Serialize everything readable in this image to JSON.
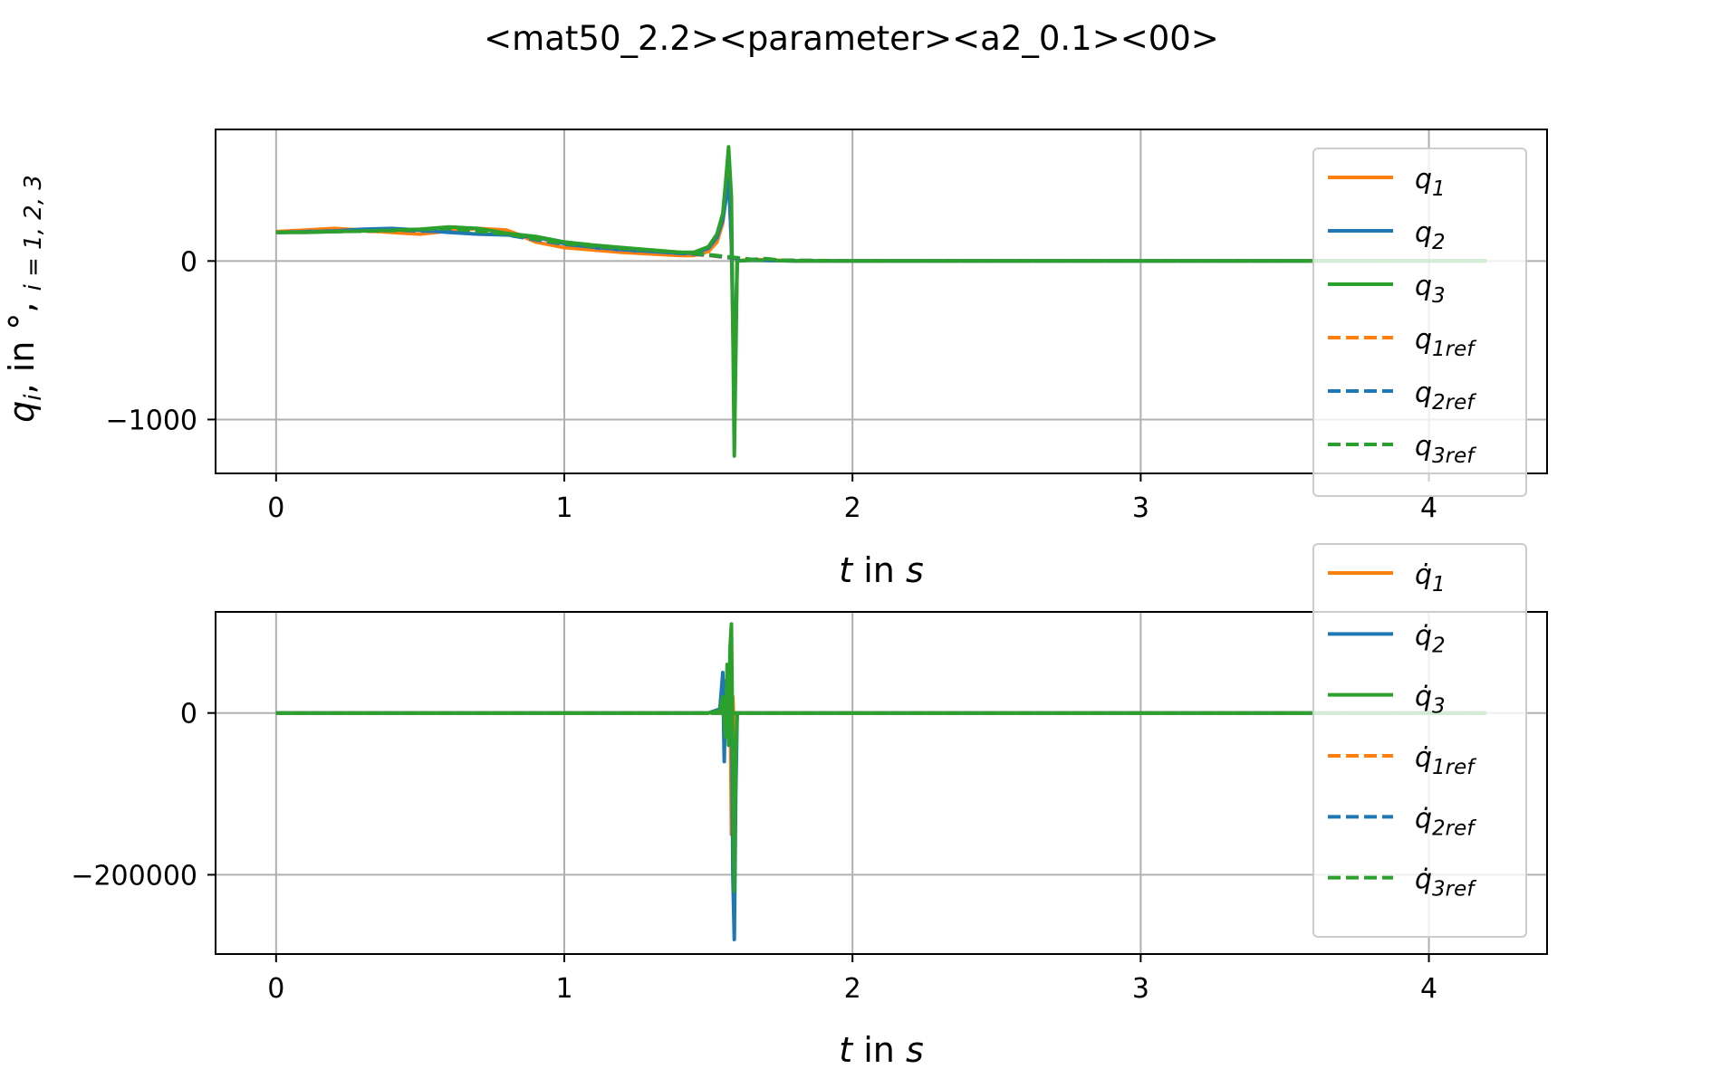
{
  "page": {
    "title": "<mat50_2.2><parameter><a2_0.1><00>"
  },
  "colors": {
    "q1": "#ff7f0e",
    "q2": "#1f77b4",
    "q3": "#2ca02c",
    "grid": "#b0b0b0",
    "axis": "#000000"
  },
  "chart_data": [
    {
      "type": "line",
      "title": "<mat50_2.2><parameter><a2_0.1><00>",
      "xlabel_italic": "t",
      "xlabel_mid": " in ",
      "xlabel_unit": "s",
      "ylabel_sym": "q",
      "ylabel_sub": "i",
      "ylabel_mid": ",  in °,  ",
      "ylabel_range": "i = 1, 2, 3",
      "xlim": [
        -0.21,
        4.41
      ],
      "ylim": [
        -1340,
        830
      ],
      "xticks": [
        0,
        1,
        2,
        3,
        4
      ],
      "xtick_labels": [
        "0",
        "1",
        "2",
        "3",
        "4"
      ],
      "yticks": [
        0,
        -1000
      ],
      "ytick_labels": [
        "0",
        "−1000"
      ],
      "grid": true,
      "legend_position": "right",
      "series": [
        {
          "name": "q",
          "sub": "1",
          "style": "solid",
          "color_key": "q1",
          "x": [
            0,
            0.1,
            0.2,
            0.3,
            0.4,
            0.5,
            0.6,
            0.7,
            0.8,
            0.85,
            0.9,
            1.0,
            1.1,
            1.2,
            1.3,
            1.4,
            1.45,
            1.5,
            1.53,
            1.55,
            1.56,
            1.57,
            1.58,
            1.59,
            1.6,
            1.65,
            1.8,
            2.0,
            3.0,
            4.2
          ],
          "y": [
            185,
            195,
            205,
            195,
            180,
            170,
            190,
            205,
            195,
            160,
            120,
            85,
            70,
            55,
            45,
            35,
            35,
            60,
            120,
            240,
            420,
            600,
            100,
            -900,
            0,
            10,
            0,
            0,
            0,
            0
          ]
        },
        {
          "name": "q",
          "sub": "2",
          "style": "solid",
          "color_key": "q2",
          "x": [
            0,
            0.1,
            0.2,
            0.3,
            0.4,
            0.5,
            0.6,
            0.7,
            0.8,
            0.9,
            1.0,
            1.1,
            1.2,
            1.3,
            1.4,
            1.45,
            1.5,
            1.53,
            1.55,
            1.56,
            1.57,
            1.58,
            1.59,
            1.6,
            1.65,
            1.8,
            2.0,
            3.0,
            4.2
          ],
          "y": [
            180,
            185,
            190,
            200,
            205,
            195,
            180,
            170,
            165,
            150,
            110,
            85,
            70,
            60,
            50,
            50,
            80,
            150,
            260,
            380,
            520,
            120,
            -800,
            0,
            5,
            0,
            0,
            0,
            0
          ]
        },
        {
          "name": "q",
          "sub": "3",
          "style": "solid",
          "color_key": "q3",
          "x": [
            0,
            0.1,
            0.2,
            0.3,
            0.4,
            0.5,
            0.6,
            0.7,
            0.8,
            0.9,
            1.0,
            1.1,
            1.2,
            1.3,
            1.4,
            1.45,
            1.5,
            1.53,
            1.55,
            1.56,
            1.57,
            1.58,
            1.59,
            1.6,
            1.65,
            1.8,
            2.0,
            3.0,
            4.2
          ],
          "y": [
            180,
            180,
            185,
            190,
            195,
            200,
            215,
            205,
            175,
            155,
            120,
            100,
            85,
            70,
            55,
            55,
            90,
            170,
            300,
            500,
            720,
            400,
            -1230,
            0,
            5,
            0,
            0,
            0,
            0
          ]
        },
        {
          "name": "q",
          "sub": "1ref",
          "style": "dashed",
          "color_key": "q1",
          "x": [
            0,
            0.2,
            0.4,
            0.6,
            0.8,
            1.0,
            1.2,
            1.4,
            1.5,
            1.6,
            1.7,
            2.0,
            3.0,
            4.2
          ],
          "y": [
            180,
            190,
            185,
            195,
            170,
            100,
            70,
            45,
            35,
            15,
            5,
            0,
            0,
            0
          ]
        },
        {
          "name": "q",
          "sub": "2ref",
          "style": "dashed",
          "color_key": "q2",
          "x": [
            0,
            0.2,
            0.4,
            0.6,
            0.8,
            1.0,
            1.2,
            1.4,
            1.5,
            1.6,
            1.7,
            2.0,
            3.0,
            4.2
          ],
          "y": [
            180,
            188,
            195,
            185,
            165,
            105,
            72,
            48,
            38,
            15,
            5,
            0,
            0,
            0
          ]
        },
        {
          "name": "q",
          "sub": "3ref",
          "style": "dashed",
          "color_key": "q3",
          "x": [
            0,
            0.2,
            0.4,
            0.6,
            0.8,
            1.0,
            1.2,
            1.4,
            1.5,
            1.6,
            1.65,
            1.7,
            1.75,
            2.0,
            3.0,
            4.2
          ],
          "y": [
            180,
            185,
            192,
            205,
            170,
            110,
            80,
            55,
            40,
            20,
            10,
            15,
            5,
            0,
            0,
            0
          ]
        }
      ]
    },
    {
      "type": "line",
      "xlabel_italic": "t",
      "xlabel_mid": " in ",
      "xlabel_unit": "s",
      "xlim": [
        -0.21,
        4.41
      ],
      "ylim": [
        -298000,
        125000
      ],
      "xticks": [
        0,
        1,
        2,
        3,
        4
      ],
      "xtick_labels": [
        "0",
        "1",
        "2",
        "3",
        "4"
      ],
      "yticks": [
        0,
        -200000
      ],
      "ytick_labels": [
        "0",
        "−200000"
      ],
      "grid": true,
      "legend_position": "right",
      "series": [
        {
          "name": "q̇",
          "sub": "1",
          "style": "solid",
          "color_key": "q1",
          "x": [
            0,
            1.0,
            1.5,
            1.55,
            1.56,
            1.57,
            1.575,
            1.58,
            1.585,
            1.59,
            1.6,
            1.7,
            2.0,
            4.2
          ],
          "y": [
            0,
            0,
            0,
            5000,
            -30000,
            10000,
            60000,
            -150000,
            20000,
            -30000,
            0,
            0,
            0,
            0
          ]
        },
        {
          "name": "q̇",
          "sub": "2",
          "style": "solid",
          "color_key": "q2",
          "x": [
            0,
            1.0,
            1.5,
            1.54,
            1.55,
            1.555,
            1.56,
            1.565,
            1.57,
            1.575,
            1.58,
            1.585,
            1.59,
            1.595,
            1.6,
            1.7,
            2.0,
            4.2
          ],
          "y": [
            0,
            0,
            0,
            5000,
            50000,
            -60000,
            40000,
            -20000,
            30000,
            -10000,
            60000,
            -200000,
            -280000,
            -100000,
            0,
            0,
            0,
            0
          ]
        },
        {
          "name": "q̇",
          "sub": "3",
          "style": "solid",
          "color_key": "q3",
          "x": [
            0,
            1.0,
            1.5,
            1.54,
            1.55,
            1.56,
            1.565,
            1.57,
            1.575,
            1.58,
            1.585,
            1.59,
            1.595,
            1.6,
            1.7,
            2.0,
            4.2
          ],
          "y": [
            0,
            0,
            0,
            3000,
            20000,
            -30000,
            60000,
            -40000,
            80000,
            110000,
            -60000,
            -220000,
            -50000,
            0,
            0,
            0,
            0
          ]
        },
        {
          "name": "q̇",
          "sub": "1ref",
          "style": "dashed",
          "color_key": "q1",
          "x": [
            0,
            4.2
          ],
          "y": [
            0,
            0
          ]
        },
        {
          "name": "q̇",
          "sub": "2ref",
          "style": "dashed",
          "color_key": "q2",
          "x": [
            0,
            4.2
          ],
          "y": [
            0,
            0
          ]
        },
        {
          "name": "q̇",
          "sub": "3ref",
          "style": "dashed",
          "color_key": "q3",
          "x": [
            0,
            4.2
          ],
          "y": [
            0,
            0
          ]
        }
      ]
    }
  ]
}
